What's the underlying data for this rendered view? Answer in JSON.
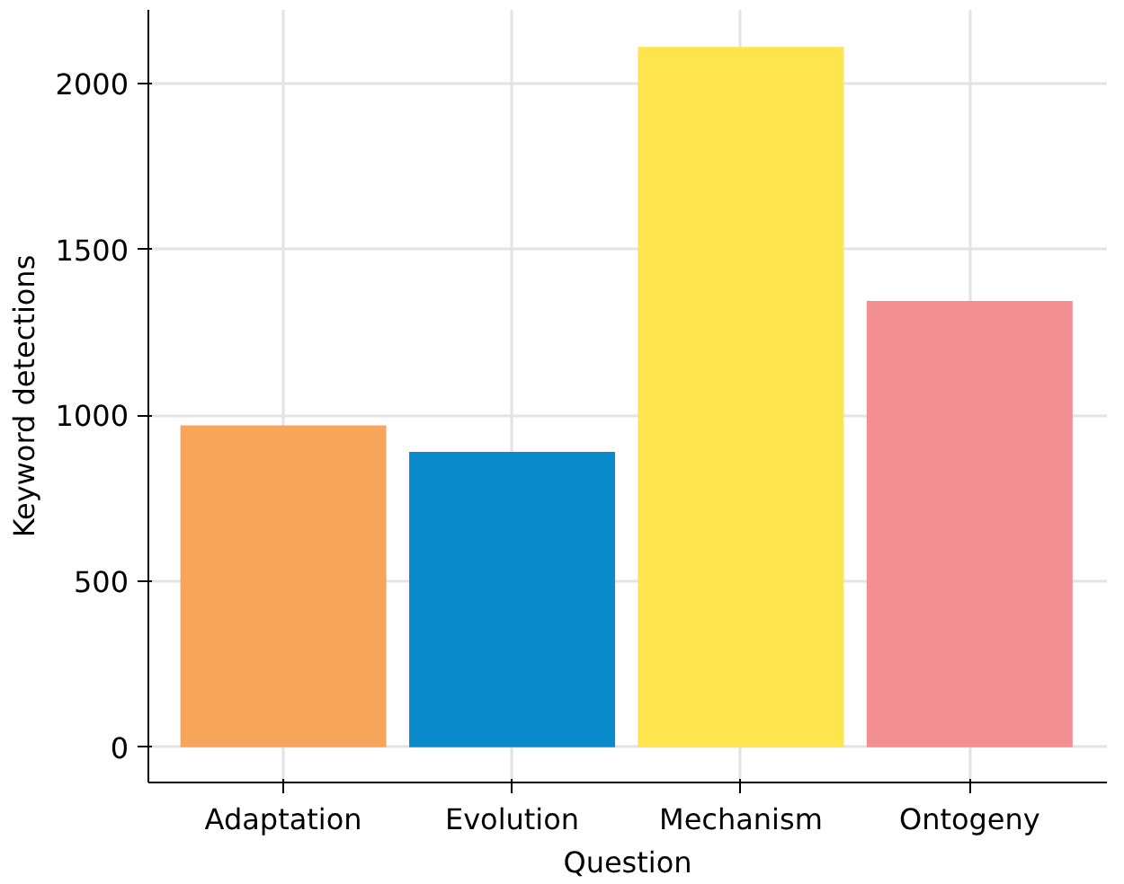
{
  "chart_data": {
    "type": "bar",
    "xlabel": "Question",
    "ylabel": "Keyword detections",
    "categories": [
      "Adaptation",
      "Evolution",
      "Mechanism",
      "Ontogeny"
    ],
    "values": [
      970,
      890,
      2110,
      1345
    ],
    "colors": [
      "#f8a55c",
      "#0a8bcb",
      "#fee54e",
      "#f48f91"
    ],
    "ylim": [
      -106,
      2222
    ],
    "yticks": [
      0,
      500,
      1000,
      1500,
      2000
    ],
    "grid": true
  }
}
